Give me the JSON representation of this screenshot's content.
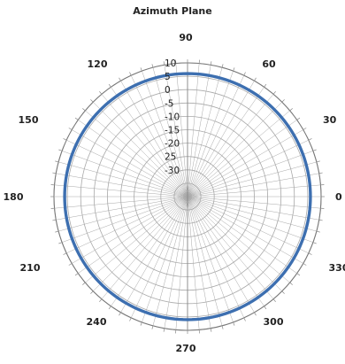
{
  "chart_data": {
    "type": "polar-line",
    "title": "Azimuth Plane",
    "angle_labels": [
      "0",
      "30",
      "60",
      "90",
      "120",
      "150",
      "180",
      "210",
      "240",
      "270",
      "300",
      "330"
    ],
    "radial_tick_labels": [
      "10",
      "5",
      "0",
      "-5",
      "-10",
      "-15",
      "-20",
      "25",
      "-30"
    ],
    "radial_range": [
      -40,
      10
    ],
    "angle_direction": "counterclockwise",
    "zero_angle": "right",
    "grid": true,
    "series": [
      {
        "color": "#3d6fb0",
        "angles_deg": [
          0,
          30,
          60,
          90,
          120,
          150,
          180,
          210,
          240,
          270,
          300,
          330,
          360
        ],
        "values": [
          6,
          6,
          6,
          6,
          6,
          6,
          6,
          6,
          6,
          6,
          6,
          6,
          6
        ]
      }
    ]
  }
}
